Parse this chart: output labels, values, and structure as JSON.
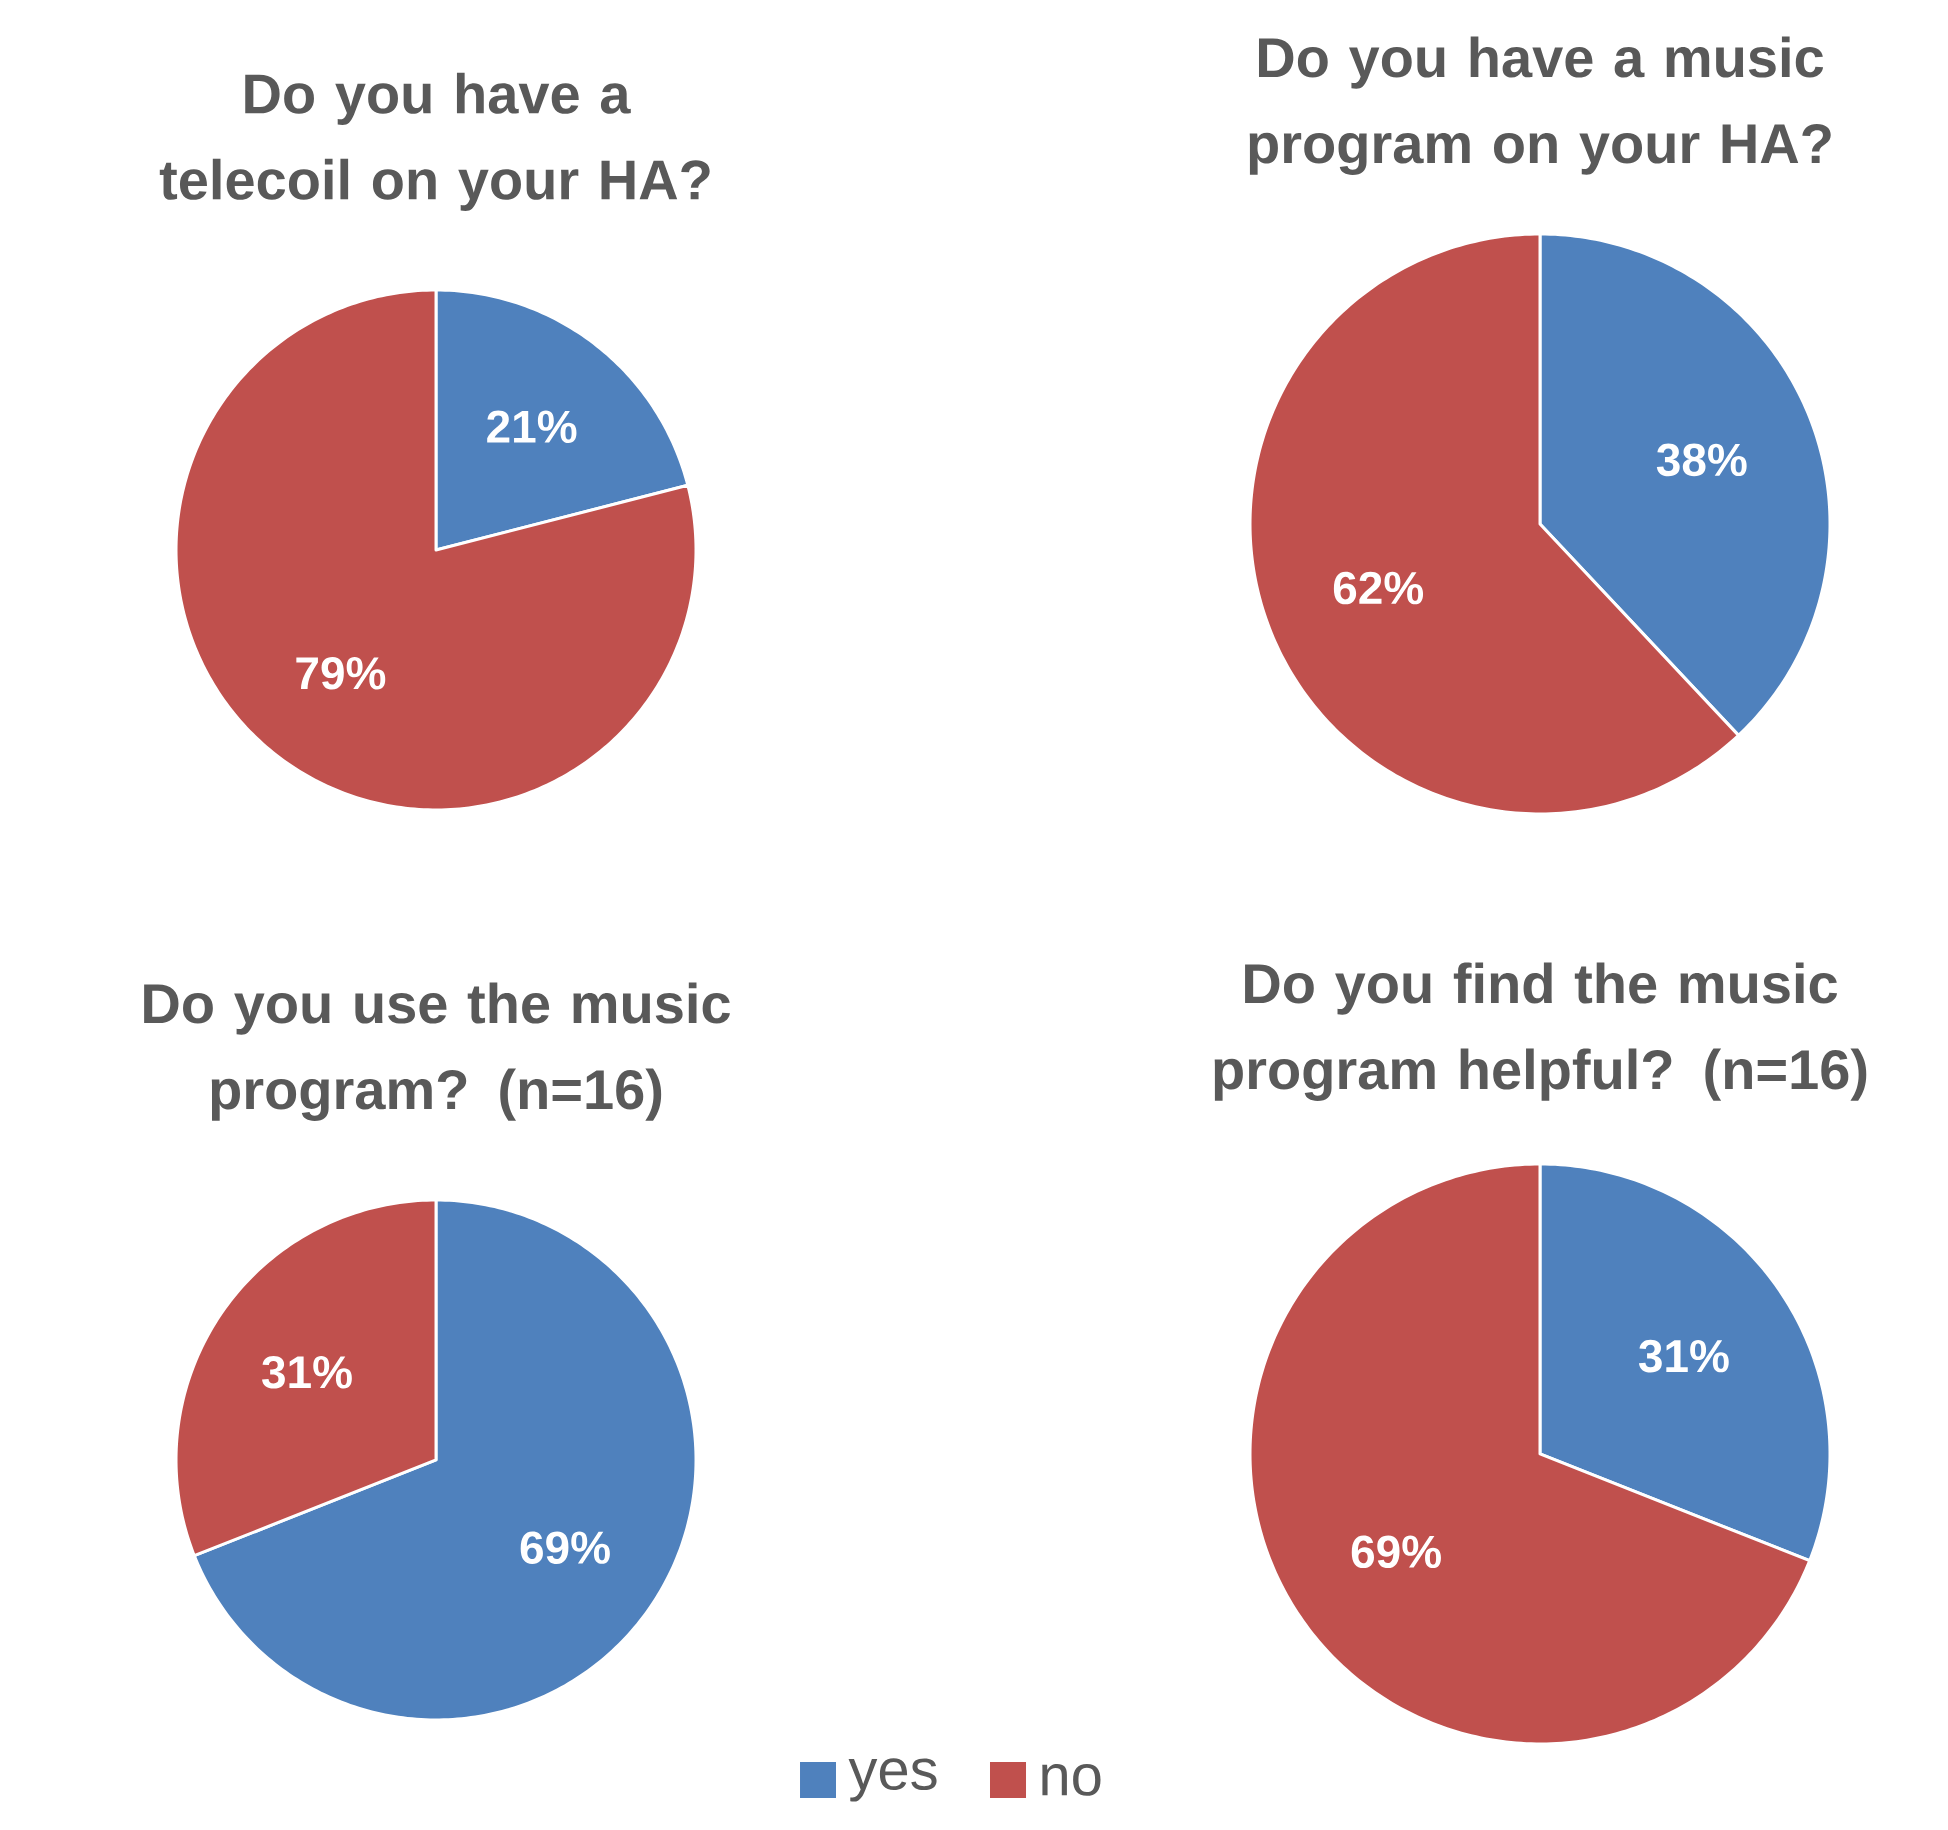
{
  "chart_data": [
    {
      "type": "pie",
      "title": "Do you have a telecoil on your HA?",
      "categories": [
        null,
        null
      ],
      "values": [
        21,
        79
      ],
      "value_labels": [
        "21%",
        "79%"
      ],
      "colors": [
        "#4f81bd",
        "#c0504d"
      ]
    },
    {
      "type": "pie",
      "title": "Do you have a music program on your HA?",
      "categories": [
        null,
        null
      ],
      "values": [
        38,
        62
      ],
      "value_labels": [
        "38%",
        "62%"
      ],
      "colors": [
        "#4f81bd",
        "#c0504d"
      ]
    },
    {
      "type": "pie",
      "title": "Do you use the music program? (n=16)",
      "categories": [
        null,
        null
      ],
      "values": [
        69,
        31
      ],
      "value_labels": [
        "69%",
        "31%"
      ],
      "colors": [
        "#4f81bd",
        "#c0504d"
      ]
    },
    {
      "type": "pie",
      "title": "Do you find the music program helpful? (n=16)",
      "categories": [
        "yes",
        "no"
      ],
      "values": [
        31,
        69
      ],
      "value_labels": [
        "31%",
        "69%"
      ],
      "colors": [
        "#4f81bd",
        "#c0504d"
      ],
      "legend": "bottom"
    }
  ]
}
